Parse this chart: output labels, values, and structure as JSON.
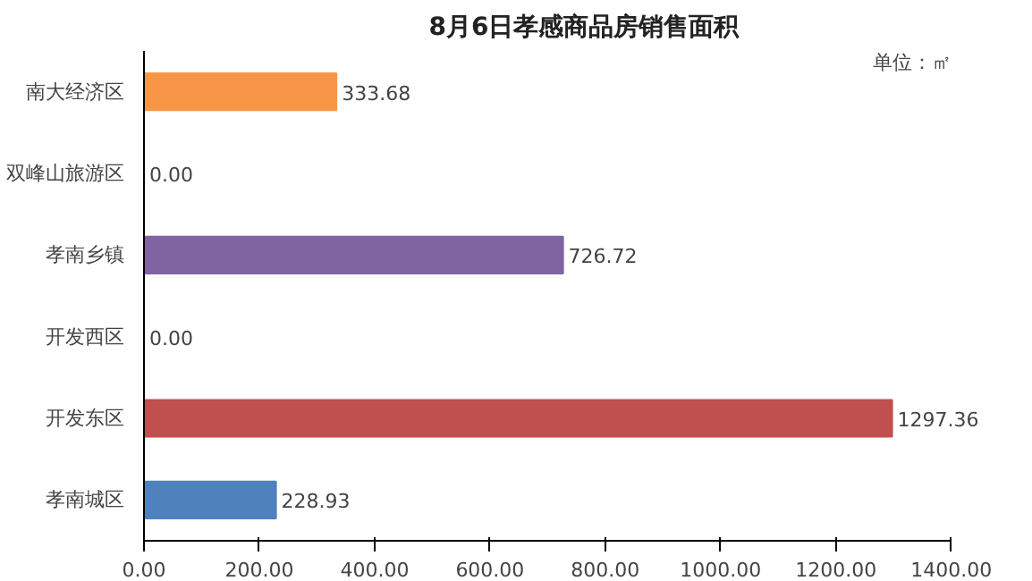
{
  "chart_data": {
    "type": "bar",
    "orientation": "horizontal",
    "title": "8月6日孝感商品房销售面积",
    "annotations": [
      "单位：㎡"
    ],
    "categories": [
      "南大经济区",
      "双峰山旅游区",
      "孝南乡镇",
      "开发西区",
      "开发东区",
      "孝南城区"
    ],
    "values": [
      333.68,
      0,
      726.72,
      0,
      1297.36,
      228.93
    ],
    "colors": [
      "#f79646",
      "#4f81bd",
      "#8064a2",
      "#4f81bd",
      "#c0504d",
      "#4f81bd"
    ],
    "value_labels": [
      "333.68",
      "0.00",
      "726.72",
      "0.00",
      "1297.36",
      "228.93"
    ],
    "xlim": [
      0,
      1400
    ],
    "xticks": [
      {
        "value": 0,
        "label": "0.00"
      },
      {
        "value": 200,
        "label": "200.00"
      },
      {
        "value": 400,
        "label": "400.00"
      },
      {
        "value": 600,
        "label": "600.00"
      },
      {
        "value": 800,
        "label": "800.00"
      },
      {
        "value": 1000,
        "label": "1000.00"
      },
      {
        "value": 1200,
        "label": "1200.00"
      },
      {
        "value": 1400,
        "label": "1400.00"
      }
    ],
    "grid": false
  }
}
